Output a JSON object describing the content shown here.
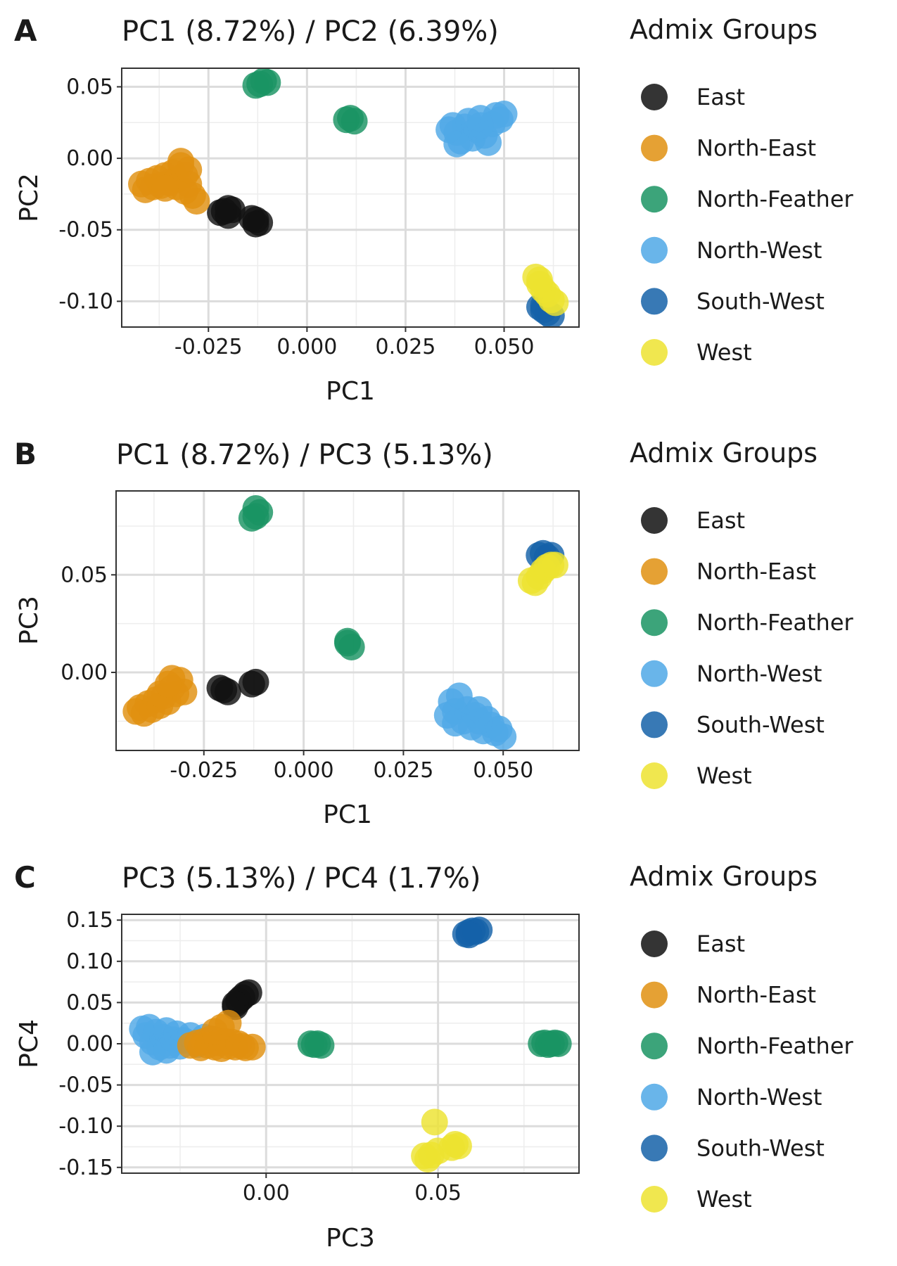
{
  "legend": {
    "title": "Admix Groups",
    "groups": [
      {
        "name": "East",
        "color": "#111111"
      },
      {
        "name": "North-East",
        "color": "#E09010"
      },
      {
        "name": "North-Feather",
        "color": "#1A9463"
      },
      {
        "name": "North-West",
        "color": "#4FA8E6"
      },
      {
        "name": "South-West",
        "color": "#1562A8"
      },
      {
        "name": "West",
        "color": "#EDE330"
      }
    ]
  },
  "chart_data": [
    {
      "type": "scatter",
      "panel": "A",
      "title": "PC1 (8.72%) / PC2 (6.39%)",
      "xlabel": "PC1",
      "ylabel": "PC2",
      "xlim": [
        -0.047,
        0.069
      ],
      "ylim": [
        -0.118,
        0.063
      ],
      "xticks": [
        -0.025,
        0.0,
        0.025,
        0.05
      ],
      "xtick_labels": [
        "-0.025",
        "0.000",
        "0.025",
        "0.050"
      ],
      "yticks": [
        -0.1,
        -0.05,
        0.0,
        0.05
      ],
      "ytick_labels": [
        "-0.10",
        "-0.05",
        "0.00",
        "0.05"
      ],
      "grid": true,
      "legend_position": "right",
      "series": [
        {
          "name": "East",
          "points": [
            [
              -0.021,
              -0.037
            ],
            [
              -0.02,
              -0.04
            ],
            [
              -0.019,
              -0.036
            ],
            [
              -0.022,
              -0.038
            ],
            [
              -0.02,
              -0.035
            ],
            [
              -0.013,
              -0.043
            ],
            [
              -0.012,
              -0.045
            ],
            [
              -0.014,
              -0.042
            ],
            [
              -0.013,
              -0.046
            ]
          ]
        },
        {
          "name": "North-East",
          "points": [
            [
              -0.042,
              -0.018
            ],
            [
              -0.041,
              -0.022
            ],
            [
              -0.04,
              -0.016
            ],
            [
              -0.039,
              -0.02
            ],
            [
              -0.038,
              -0.014
            ],
            [
              -0.037,
              -0.019
            ],
            [
              -0.036,
              -0.012
            ],
            [
              -0.035,
              -0.017
            ],
            [
              -0.034,
              -0.01
            ],
            [
              -0.033,
              -0.015
            ],
            [
              -0.032,
              -0.005
            ],
            [
              -0.031,
              -0.012
            ],
            [
              -0.033,
              -0.02
            ],
            [
              -0.03,
              -0.018
            ],
            [
              -0.029,
              -0.026
            ],
            [
              -0.028,
              -0.03
            ],
            [
              -0.031,
              -0.023
            ],
            [
              -0.036,
              -0.021
            ],
            [
              -0.03,
              -0.008
            ],
            [
              -0.032,
              -0.002
            ]
          ]
        },
        {
          "name": "North-Feather",
          "points": [
            [
              -0.012,
              0.052
            ],
            [
              -0.011,
              0.054
            ],
            [
              -0.013,
              0.051
            ],
            [
              -0.01,
              0.053
            ],
            [
              0.01,
              0.027
            ],
            [
              0.012,
              0.026
            ],
            [
              0.011,
              0.028
            ]
          ]
        },
        {
          "name": "North-West",
          "points": [
            [
              0.037,
              0.023
            ],
            [
              0.038,
              0.018
            ],
            [
              0.039,
              0.012
            ],
            [
              0.04,
              0.022
            ],
            [
              0.041,
              0.026
            ],
            [
              0.042,
              0.014
            ],
            [
              0.043,
              0.02
            ],
            [
              0.044,
              0.028
            ],
            [
              0.045,
              0.016
            ],
            [
              0.046,
              0.011
            ],
            [
              0.047,
              0.024
            ],
            [
              0.048,
              0.03
            ],
            [
              0.05,
              0.031
            ],
            [
              0.049,
              0.027
            ],
            [
              0.038,
              0.01
            ],
            [
              0.044,
              0.023
            ],
            [
              0.036,
              0.02
            ]
          ]
        },
        {
          "name": "South-West",
          "points": [
            [
              0.059,
              -0.104
            ],
            [
              0.06,
              -0.106
            ],
            [
              0.061,
              -0.108
            ],
            [
              0.062,
              -0.11
            ],
            [
              0.06,
              -0.103
            ]
          ]
        },
        {
          "name": "West",
          "points": [
            [
              0.058,
              -0.083
            ],
            [
              0.059,
              -0.088
            ],
            [
              0.06,
              -0.092
            ],
            [
              0.061,
              -0.095
            ],
            [
              0.062,
              -0.099
            ],
            [
              0.063,
              -0.101
            ],
            [
              0.059,
              -0.085
            ]
          ]
        }
      ]
    },
    {
      "type": "scatter",
      "panel": "B",
      "title": "PC1 (8.72%) / PC3 (5.13%)",
      "xlabel": "PC1",
      "ylabel": "PC3",
      "xlim": [
        -0.047,
        0.069
      ],
      "ylim": [
        -0.04,
        0.093
      ],
      "xticks": [
        -0.025,
        0.0,
        0.025,
        0.05
      ],
      "xtick_labels": [
        "-0.025",
        "0.000",
        "0.025",
        "0.050"
      ],
      "yticks": [
        0.0,
        0.05
      ],
      "ytick_labels": [
        "0.00",
        "0.05"
      ],
      "grid": true,
      "legend_position": "right",
      "series": [
        {
          "name": "East",
          "points": [
            [
              -0.02,
              -0.009
            ],
            [
              -0.021,
              -0.008
            ],
            [
              -0.019,
              -0.01
            ],
            [
              -0.013,
              -0.006
            ],
            [
              -0.012,
              -0.005
            ]
          ]
        },
        {
          "name": "North-East",
          "points": [
            [
              -0.042,
              -0.02
            ],
            [
              -0.041,
              -0.018
            ],
            [
              -0.04,
              -0.021
            ],
            [
              -0.039,
              -0.016
            ],
            [
              -0.038,
              -0.019
            ],
            [
              -0.037,
              -0.014
            ],
            [
              -0.036,
              -0.017
            ],
            [
              -0.035,
              -0.012
            ],
            [
              -0.034,
              -0.015
            ],
            [
              -0.033,
              -0.008
            ],
            [
              -0.032,
              -0.011
            ],
            [
              -0.031,
              -0.004
            ],
            [
              -0.03,
              -0.01
            ],
            [
              -0.033,
              -0.003
            ],
            [
              -0.036,
              -0.011
            ],
            [
              -0.034,
              -0.006
            ]
          ]
        },
        {
          "name": "North-Feather",
          "points": [
            [
              -0.012,
              0.08
            ],
            [
              -0.011,
              0.082
            ],
            [
              -0.013,
              0.079
            ],
            [
              -0.012,
              0.084
            ],
            [
              0.011,
              0.015
            ],
            [
              0.012,
              0.013
            ],
            [
              0.011,
              0.016
            ]
          ]
        },
        {
          "name": "North-West",
          "points": [
            [
              0.037,
              -0.015
            ],
            [
              0.038,
              -0.02
            ],
            [
              0.036,
              -0.022
            ],
            [
              0.039,
              -0.012
            ],
            [
              0.04,
              -0.025
            ],
            [
              0.041,
              -0.019
            ],
            [
              0.042,
              -0.028
            ],
            [
              0.043,
              -0.022
            ],
            [
              0.044,
              -0.019
            ],
            [
              0.045,
              -0.03
            ],
            [
              0.046,
              -0.024
            ],
            [
              0.047,
              -0.027
            ],
            [
              0.048,
              -0.031
            ],
            [
              0.05,
              -0.033
            ],
            [
              0.049,
              -0.029
            ],
            [
              0.038,
              -0.026
            ],
            [
              0.044,
              -0.025
            ]
          ]
        },
        {
          "name": "South-West",
          "points": [
            [
              0.059,
              0.06
            ],
            [
              0.06,
              0.061
            ],
            [
              0.061,
              0.059
            ],
            [
              0.062,
              0.06
            ]
          ]
        },
        {
          "name": "West",
          "points": [
            [
              0.057,
              0.047
            ],
            [
              0.058,
              0.046
            ],
            [
              0.059,
              0.049
            ],
            [
              0.06,
              0.052
            ],
            [
              0.061,
              0.054
            ],
            [
              0.062,
              0.055
            ],
            [
              0.063,
              0.055
            ]
          ]
        }
      ]
    },
    {
      "type": "scatter",
      "panel": "C",
      "title": "PC3 (5.13%) / PC4 (1.7%)",
      "xlabel": "PC3",
      "ylabel": "PC4",
      "xlim": [
        -0.042,
        0.091
      ],
      "ylim": [
        -0.157,
        0.157
      ],
      "xticks": [
        0.0,
        0.05
      ],
      "xtick_labels": [
        "0.00",
        "0.05"
      ],
      "yticks": [
        -0.15,
        -0.1,
        -0.05,
        0.0,
        0.05,
        0.1,
        0.15
      ],
      "ytick_labels": [
        "-0.15",
        "-0.10",
        "-0.05",
        "0.00",
        "0.05",
        "0.10",
        "0.15"
      ],
      "grid": true,
      "legend_position": "right",
      "series": [
        {
          "name": "East",
          "points": [
            [
              -0.009,
              0.045
            ],
            [
              -0.008,
              0.052
            ],
            [
              -0.007,
              0.056
            ],
            [
              -0.006,
              0.06
            ],
            [
              -0.005,
              0.062
            ],
            [
              -0.009,
              0.048
            ]
          ]
        },
        {
          "name": "North-West",
          "points": [
            [
              -0.036,
              0.018
            ],
            [
              -0.035,
              0.01
            ],
            [
              -0.034,
              0.02
            ],
            [
              -0.033,
              0.002
            ],
            [
              -0.032,
              0.014
            ],
            [
              -0.031,
              -0.004
            ],
            [
              -0.03,
              0.008
            ],
            [
              -0.029,
              0.016
            ],
            [
              -0.028,
              -0.002
            ],
            [
              -0.027,
              0.005
            ],
            [
              -0.026,
              0.012
            ],
            [
              -0.025,
              -0.003
            ],
            [
              -0.024,
              0.004
            ],
            [
              -0.022,
              0.01
            ],
            [
              -0.02,
              -0.001
            ],
            [
              -0.018,
              0.008
            ],
            [
              -0.015,
              0.005
            ],
            [
              -0.033,
              -0.01
            ],
            [
              -0.029,
              -0.008
            ]
          ]
        },
        {
          "name": "North-East",
          "points": [
            [
              -0.022,
              -0.002
            ],
            [
              -0.02,
              0.001
            ],
            [
              -0.019,
              -0.005
            ],
            [
              -0.018,
              0.003
            ],
            [
              -0.017,
              -0.002
            ],
            [
              -0.016,
              0.006
            ],
            [
              -0.015,
              -0.004
            ],
            [
              -0.014,
              0.001
            ],
            [
              -0.013,
              -0.006
            ],
            [
              -0.012,
              0.003
            ],
            [
              -0.011,
              -0.003
            ],
            [
              -0.01,
              0.002
            ],
            [
              -0.009,
              -0.004
            ],
            [
              -0.008,
              0.0
            ],
            [
              -0.007,
              -0.003
            ],
            [
              -0.006,
              -0.005
            ],
            [
              -0.004,
              -0.004
            ],
            [
              -0.015,
              0.015
            ],
            [
              -0.013,
              0.02
            ],
            [
              -0.011,
              0.025
            ]
          ]
        },
        {
          "name": "North-Feather",
          "points": [
            [
              0.013,
              0.0
            ],
            [
              0.014,
              -0.001
            ],
            [
              0.015,
              0.0
            ],
            [
              0.016,
              -0.002
            ],
            [
              0.08,
              0.0
            ],
            [
              0.081,
              0.001
            ],
            [
              0.082,
              -0.001
            ],
            [
              0.083,
              0.0
            ],
            [
              0.084,
              0.001
            ],
            [
              0.085,
              0.0
            ]
          ]
        },
        {
          "name": "South-West",
          "points": [
            [
              0.058,
              0.133
            ],
            [
              0.059,
              0.135
            ],
            [
              0.06,
              0.137
            ],
            [
              0.061,
              0.136
            ],
            [
              0.062,
              0.138
            ],
            [
              0.059,
              0.132
            ]
          ]
        },
        {
          "name": "West",
          "points": [
            [
              0.046,
              -0.136
            ],
            [
              0.047,
              -0.14
            ],
            [
              0.048,
              -0.135
            ],
            [
              0.049,
              -0.095
            ],
            [
              0.05,
              -0.13
            ],
            [
              0.054,
              -0.126
            ],
            [
              0.055,
              -0.122
            ],
            [
              0.056,
              -0.124
            ]
          ]
        }
      ]
    }
  ]
}
